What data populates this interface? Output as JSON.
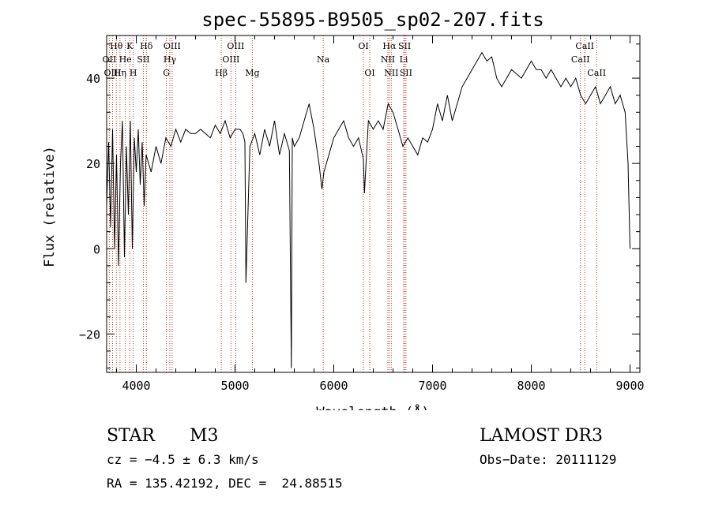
{
  "chart_data": {
    "type": "line",
    "title": "spec-55895-B9505_sp02-207.fits",
    "xlabel": "Wavelength (Å)",
    "ylabel": "Flux (relative)",
    "xlim": [
      3700,
      9100
    ],
    "ylim": [
      -29,
      50
    ],
    "x_ticks": [
      4000,
      5000,
      6000,
      7000,
      8000,
      9000
    ],
    "x_tick_labels": [
      "4000",
      "5000",
      "6000",
      "7000",
      "8000",
      "9000"
    ],
    "y_ticks": [
      -20,
      0,
      20,
      40
    ],
    "y_tick_labels": [
      "−20",
      "0",
      "20",
      "40"
    ],
    "grid": false,
    "series": [
      {
        "name": "flux",
        "x": [
          3700,
          3720,
          3740,
          3760,
          3780,
          3800,
          3820,
          3840,
          3860,
          3880,
          3900,
          3920,
          3940,
          3960,
          3980,
          4000,
          4020,
          4040,
          4060,
          4080,
          4100,
          4150,
          4200,
          4250,
          4300,
          4350,
          4400,
          4450,
          4500,
          4550,
          4600,
          4650,
          4700,
          4750,
          4800,
          4850,
          4900,
          4950,
          5000,
          5050,
          5080,
          5100,
          5110,
          5150,
          5200,
          5250,
          5300,
          5350,
          5400,
          5450,
          5500,
          5550,
          5570,
          5580,
          5600,
          5650,
          5700,
          5750,
          5800,
          5850,
          5880,
          5900,
          5950,
          6000,
          6050,
          6100,
          6150,
          6200,
          6250,
          6300,
          6310,
          6350,
          6400,
          6450,
          6500,
          6550,
          6600,
          6650,
          6700,
          6750,
          6800,
          6850,
          6900,
          6950,
          7000,
          7050,
          7100,
          7150,
          7200,
          7250,
          7300,
          7350,
          7400,
          7450,
          7500,
          7550,
          7600,
          7650,
          7700,
          7750,
          7800,
          7850,
          7900,
          7950,
          8000,
          8050,
          8100,
          8150,
          8200,
          8250,
          8300,
          8350,
          8400,
          8450,
          8500,
          8550,
          8600,
          8650,
          8700,
          8750,
          8800,
          8850,
          8900,
          8950,
          8980,
          9000
        ],
        "y": [
          10,
          25,
          5,
          28,
          0,
          22,
          -4,
          20,
          30,
          -2,
          24,
          8,
          30,
          0,
          26,
          18,
          28,
          15,
          25,
          10,
          22,
          18,
          24,
          20,
          26,
          24,
          28,
          25,
          28,
          27,
          27,
          28,
          27,
          26,
          29,
          27,
          30,
          26,
          28,
          28,
          27,
          25,
          -8,
          24,
          27,
          22,
          28,
          24,
          30,
          22,
          27,
          23,
          -28,
          26,
          24,
          26,
          30,
          34,
          28,
          20,
          14,
          18,
          22,
          26,
          28,
          30,
          26,
          24,
          26,
          21,
          13,
          30,
          28,
          30,
          28,
          34,
          32,
          28,
          24,
          26,
          24,
          22,
          26,
          25,
          28,
          34,
          30,
          36,
          30,
          34,
          38,
          40,
          42,
          44,
          46,
          44,
          45,
          40,
          38,
          40,
          42,
          41,
          40,
          42,
          44,
          42,
          42,
          40,
          42,
          40,
          38,
          40,
          38,
          40,
          36,
          34,
          36,
          38,
          34,
          36,
          38,
          34,
          36,
          32,
          20,
          0
        ]
      }
    ],
    "line_markers": [
      {
        "label": "Hθ",
        "wavelength": 3798,
        "row": 1
      },
      {
        "label": "OII",
        "wavelength": 3727,
        "row": 2
      },
      {
        "label": "OIII",
        "wavelength": 3760,
        "row": 3
      },
      {
        "label": "He",
        "wavelength": 3889,
        "row": 2
      },
      {
        "label": "K",
        "wavelength": 3934,
        "row": 1
      },
      {
        "label": "Hη",
        "wavelength": 3835,
        "row": 3
      },
      {
        "label": "SII",
        "wavelength": 4072,
        "row": 2
      },
      {
        "label": "H",
        "wavelength": 3969,
        "row": 3
      },
      {
        "label": "Hδ",
        "wavelength": 4102,
        "row": 1
      },
      {
        "label": "OIII",
        "wavelength": 4363,
        "row": 1
      },
      {
        "label": "Hγ",
        "wavelength": 4340,
        "row": 2
      },
      {
        "label": "G",
        "wavelength": 4305,
        "row": 3
      },
      {
        "label": "OIII",
        "wavelength": 5007,
        "row": 1
      },
      {
        "label": "OIII",
        "wavelength": 4959,
        "row": 2
      },
      {
        "label": "Hβ",
        "wavelength": 4861,
        "row": 3
      },
      {
        "label": "Mg",
        "wavelength": 5175,
        "row": 3
      },
      {
        "label": "Na",
        "wavelength": 5893,
        "row": 2
      },
      {
        "label": "OI",
        "wavelength": 6300,
        "row": 1
      },
      {
        "label": "OI",
        "wavelength": 6364,
        "row": 3
      },
      {
        "label": "Hα",
        "wavelength": 6563,
        "row": 1
      },
      {
        "label": "SII",
        "wavelength": 6717,
        "row": 1
      },
      {
        "label": "NII",
        "wavelength": 6548,
        "row": 2
      },
      {
        "label": "Li",
        "wavelength": 6708,
        "row": 2
      },
      {
        "label": "NII",
        "wavelength": 6583,
        "row": 3
      },
      {
        "label": "SII",
        "wavelength": 6731,
        "row": 3
      },
      {
        "label": "CaII",
        "wavelength": 8542,
        "row": 1
      },
      {
        "label": "CaII",
        "wavelength": 8498,
        "row": 2
      },
      {
        "label": "CaII",
        "wavelength": 8662,
        "row": 3
      }
    ]
  },
  "info": {
    "class_label": "STAR",
    "subclass_label": "M3",
    "survey": "LAMOST DR3",
    "cz": "cz = −4.5 ± 6.3 km/s",
    "obs_date": "Obs−Date: 20111129",
    "radec": "RA = 135.42192, DEC =  24.88515"
  },
  "colors": {
    "spectrum": "#000000",
    "marker_line": "#c0392b",
    "axis": "#000000"
  }
}
